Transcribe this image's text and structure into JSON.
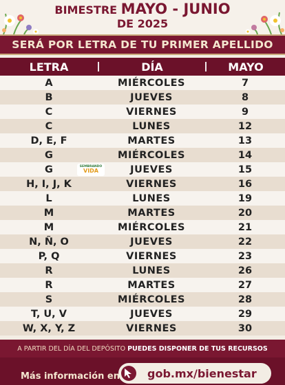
{
  "header": {
    "title_prefix": "BIMESTRE",
    "title_highlight": "MAYO - JUNIO",
    "year_line": "DE 2025"
  },
  "subtitle": "SERÁ POR LETRA DE TU PRIMER APELLIDO",
  "columns": {
    "letra": "LETRA",
    "dia": "DÍA",
    "mayo": "MAYO"
  },
  "rows": [
    {
      "letra": "A",
      "dia": "MIÉRCOLES",
      "mayo": "7"
    },
    {
      "letra": "B",
      "dia": "JUEVES",
      "mayo": "8"
    },
    {
      "letra": "C",
      "dia": "VIERNES",
      "mayo": "9"
    },
    {
      "letra": "C",
      "dia": "LUNES",
      "mayo": "12"
    },
    {
      "letra": "D, E, F",
      "dia": "MARTES",
      "mayo": "13"
    },
    {
      "letra": "G",
      "dia": "MIÉRCOLES",
      "mayo": "14"
    },
    {
      "letra": "G",
      "dia": "JUEVES",
      "mayo": "15"
    },
    {
      "letra": "H, I, J, K",
      "dia": "VIERNES",
      "mayo": "16"
    },
    {
      "letra": "L",
      "dia": "LUNES",
      "mayo": "19"
    },
    {
      "letra": "M",
      "dia": "MARTES",
      "mayo": "20"
    },
    {
      "letra": "M",
      "dia": "MIÉRCOLES",
      "mayo": "21"
    },
    {
      "letra": "N, Ñ, O",
      "dia": "JUEVES",
      "mayo": "22"
    },
    {
      "letra": "P, Q",
      "dia": "VIERNES",
      "mayo": "23"
    },
    {
      "letra": "R",
      "dia": "LUNES",
      "mayo": "26"
    },
    {
      "letra": "R",
      "dia": "MARTES",
      "mayo": "27"
    },
    {
      "letra": "S",
      "dia": "MIÉRCOLES",
      "mayo": "28"
    },
    {
      "letra": "T, U, V",
      "dia": "JUEVES",
      "mayo": "29"
    },
    {
      "letra": "W, X, Y, Z",
      "dia": "VIERNES",
      "mayo": "30"
    }
  ],
  "logo": {
    "line1": "SEMBRANDO",
    "line2": "VIDA"
  },
  "footer": {
    "prefix": "A PARTIR DEL DÍA DEL DEPÓSITO",
    "emphasis": "PUEDES DISPONER DE TUS RECURSOS"
  },
  "info": {
    "label": "Más información en:",
    "url": "gob.mx/bienestar"
  },
  "colors": {
    "brand": "#7a1731",
    "brand_dark": "#6b1129",
    "row_light": "#f7f3ee",
    "row_dark": "#e8ddd0"
  }
}
